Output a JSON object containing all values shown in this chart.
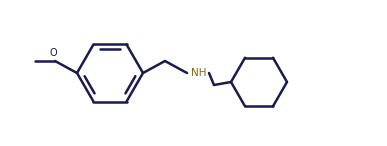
{
  "line_color": "#1a1a4e",
  "bg_color": "#ffffff",
  "line_width": 1.8,
  "NH_color": "#8B6914",
  "O_color": "#1a1a4e",
  "figsize": [
    3.87,
    1.46
  ],
  "dpi": 100
}
